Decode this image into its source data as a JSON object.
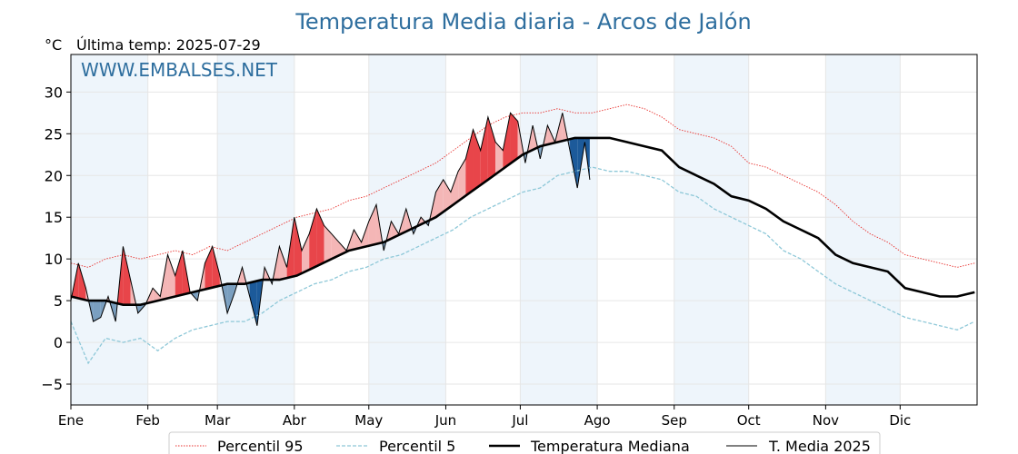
{
  "chart_data": {
    "type": "line",
    "title": "Temperatura Media diaria - Arcos de Jalón",
    "unit_label": "°C",
    "last_temp_label": "Última temp: 2025-07-29",
    "watermark": "WWW.EMBALSES.NET",
    "ylim": [
      -7.5,
      34.5
    ],
    "xlim": [
      1,
      366
    ],
    "yticks": [
      -5,
      0,
      5,
      10,
      15,
      20,
      25,
      30
    ],
    "grid": true,
    "legend_position": "bottom",
    "month_labels": [
      "Ene",
      "Feb",
      "Mar",
      "Abr",
      "May",
      "Jun",
      "Jul",
      "Ago",
      "Sep",
      "Oct",
      "Nov",
      "Dic"
    ],
    "month_start_days": [
      1,
      32,
      60,
      91,
      121,
      152,
      182,
      213,
      244,
      274,
      305,
      335
    ],
    "colors": {
      "p95": "#e8322f",
      "p5": "#8ec8d8",
      "median": "#000000",
      "current": "#000000",
      "warm_fill": "#f4b6b6",
      "warm_fill_strong": "#e8454a",
      "cold_fill": "#7a9fc0",
      "cold_fill_strong": "#1c5a9a",
      "month_band": "#eef5fb"
    },
    "series": [
      {
        "name": "Percentil 95",
        "style": "dotted-red",
        "x": [
          1,
          8,
          15,
          22,
          29,
          36,
          43,
          50,
          57,
          64,
          71,
          78,
          85,
          92,
          99,
          106,
          113,
          120,
          127,
          134,
          141,
          148,
          155,
          162,
          169,
          176,
          183,
          190,
          197,
          204,
          211,
          218,
          225,
          232,
          239,
          246,
          253,
          260,
          267,
          274,
          281,
          288,
          295,
          302,
          309,
          316,
          323,
          330,
          337,
          344,
          351,
          358,
          365
        ],
        "values": [
          9.5,
          9.0,
          10.0,
          10.5,
          10.0,
          10.5,
          11.0,
          10.5,
          11.5,
          11.0,
          12.0,
          13.0,
          14.0,
          15.0,
          15.5,
          16.0,
          17.0,
          17.5,
          18.5,
          19.5,
          20.5,
          21.5,
          23.0,
          24.5,
          26.0,
          27.0,
          27.5,
          27.5,
          28.0,
          27.5,
          27.5,
          28.0,
          28.5,
          28.0,
          27.0,
          25.5,
          25.0,
          24.5,
          23.5,
          21.5,
          21.0,
          20.0,
          19.0,
          18.0,
          16.5,
          14.5,
          13.0,
          12.0,
          10.5,
          10.0,
          9.5,
          9.0,
          9.5
        ]
      },
      {
        "name": "Percentil 5",
        "style": "dashed-lightblue",
        "x": [
          1,
          8,
          15,
          22,
          29,
          36,
          43,
          50,
          57,
          64,
          71,
          78,
          85,
          92,
          99,
          106,
          113,
          120,
          127,
          134,
          141,
          148,
          155,
          162,
          169,
          176,
          183,
          190,
          197,
          204,
          211,
          218,
          225,
          232,
          239,
          246,
          253,
          260,
          267,
          274,
          281,
          288,
          295,
          302,
          309,
          316,
          323,
          330,
          337,
          344,
          351,
          358,
          365
        ],
        "values": [
          2.5,
          -2.5,
          0.5,
          0.0,
          0.5,
          -1.0,
          0.5,
          1.5,
          2.0,
          2.5,
          2.5,
          3.5,
          5.0,
          6.0,
          7.0,
          7.5,
          8.5,
          9.0,
          10.0,
          10.5,
          11.5,
          12.5,
          13.5,
          15.0,
          16.0,
          17.0,
          18.0,
          18.5,
          20.0,
          20.5,
          21.0,
          20.5,
          20.5,
          20.0,
          19.5,
          18.0,
          17.5,
          16.0,
          15.0,
          14.0,
          13.0,
          11.0,
          10.0,
          8.5,
          7.0,
          6.0,
          5.0,
          4.0,
          3.0,
          2.5,
          2.0,
          1.5,
          2.5
        ]
      },
      {
        "name": "Temperatura Mediana",
        "style": "thick-black",
        "x": [
          1,
          8,
          15,
          22,
          29,
          36,
          43,
          50,
          57,
          64,
          71,
          78,
          85,
          92,
          99,
          106,
          113,
          120,
          127,
          134,
          141,
          148,
          155,
          162,
          169,
          176,
          183,
          190,
          197,
          204,
          211,
          218,
          225,
          232,
          239,
          246,
          253,
          260,
          267,
          274,
          281,
          288,
          295,
          302,
          309,
          316,
          323,
          330,
          337,
          344,
          351,
          358,
          365
        ],
        "values": [
          5.5,
          5.0,
          5.0,
          4.5,
          4.5,
          5.0,
          5.5,
          6.0,
          6.5,
          7.0,
          7.0,
          7.5,
          7.5,
          8.0,
          9.0,
          10.0,
          11.0,
          11.5,
          12.0,
          13.0,
          14.0,
          15.0,
          16.5,
          18.0,
          19.5,
          21.0,
          22.5,
          23.5,
          24.0,
          24.5,
          24.5,
          24.5,
          24.0,
          23.5,
          23.0,
          21.0,
          20.0,
          19.0,
          17.5,
          17.0,
          16.0,
          14.5,
          13.5,
          12.5,
          10.5,
          9.5,
          9.0,
          8.5,
          6.5,
          6.0,
          5.5,
          5.5,
          6.0
        ]
      },
      {
        "name": "T. Media 2025",
        "style": "thin-black",
        "x": [
          1,
          4,
          7,
          10,
          13,
          16,
          19,
          22,
          25,
          28,
          31,
          34,
          37,
          40,
          43,
          46,
          49,
          52,
          55,
          58,
          61,
          64,
          67,
          70,
          73,
          76,
          79,
          82,
          85,
          88,
          91,
          94,
          97,
          100,
          103,
          106,
          109,
          112,
          115,
          118,
          121,
          124,
          127,
          130,
          133,
          136,
          139,
          142,
          145,
          148,
          151,
          154,
          157,
          160,
          163,
          166,
          169,
          172,
          175,
          178,
          181,
          184,
          187,
          190,
          193,
          196,
          199,
          202,
          205,
          208,
          210
        ],
        "values": [
          5.0,
          9.5,
          6.5,
          2.5,
          3.0,
          5.5,
          2.5,
          11.5,
          7.5,
          3.5,
          4.5,
          6.5,
          5.5,
          10.5,
          8.0,
          11.0,
          6.0,
          5.0,
          9.5,
          11.5,
          8.0,
          3.5,
          6.0,
          9.0,
          5.5,
          2.0,
          9.0,
          7.0,
          11.5,
          9.0,
          15.0,
          11.0,
          13.0,
          16.0,
          14.0,
          13.0,
          12.0,
          11.0,
          13.5,
          12.0,
          14.5,
          16.5,
          11.0,
          14.5,
          13.0,
          16.0,
          13.0,
          15.0,
          14.0,
          18.0,
          19.5,
          18.0,
          20.5,
          22.0,
          25.5,
          23.0,
          27.0,
          24.0,
          23.0,
          27.5,
          26.5,
          21.5,
          26.0,
          22.0,
          26.0,
          24.0,
          27.5,
          23.0,
          18.5,
          24.0,
          19.5
        ]
      }
    ]
  }
}
